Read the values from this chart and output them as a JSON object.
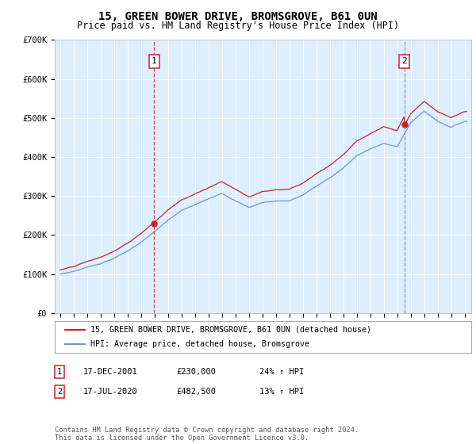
{
  "title": "15, GREEN BOWER DRIVE, BROMSGROVE, B61 0UN",
  "subtitle": "Price paid vs. HM Land Registry's House Price Index (HPI)",
  "ylim": [
    0,
    700000
  ],
  "yticks": [
    0,
    100000,
    200000,
    300000,
    400000,
    500000,
    600000,
    700000
  ],
  "ytick_labels": [
    "£0",
    "£100K",
    "£200K",
    "£300K",
    "£400K",
    "£500K",
    "£600K",
    "£700K"
  ],
  "plot_bg_color": "#ddeeff",
  "red_color": "#cc2222",
  "blue_color": "#6699cc",
  "marker1_date": 2001.96,
  "marker1_price": 230000,
  "marker2_date": 2020.54,
  "marker2_price": 482500,
  "legend_line1": "15, GREEN BOWER DRIVE, BROMSGROVE, B61 0UN (detached house)",
  "legend_line2": "HPI: Average price, detached house, Bromsgrove",
  "table_row1": [
    "1",
    "17-DEC-2001",
    "£230,000",
    "24% ↑ HPI"
  ],
  "table_row2": [
    "2",
    "17-JUL-2020",
    "£482,500",
    "13% ↑ HPI"
  ],
  "footer": "Contains HM Land Registry data © Crown copyright and database right 2024.\nThis data is licensed under the Open Government Licence v3.0.",
  "title_fontsize": 10,
  "subtitle_fontsize": 8.5,
  "tick_fontsize": 7.5
}
